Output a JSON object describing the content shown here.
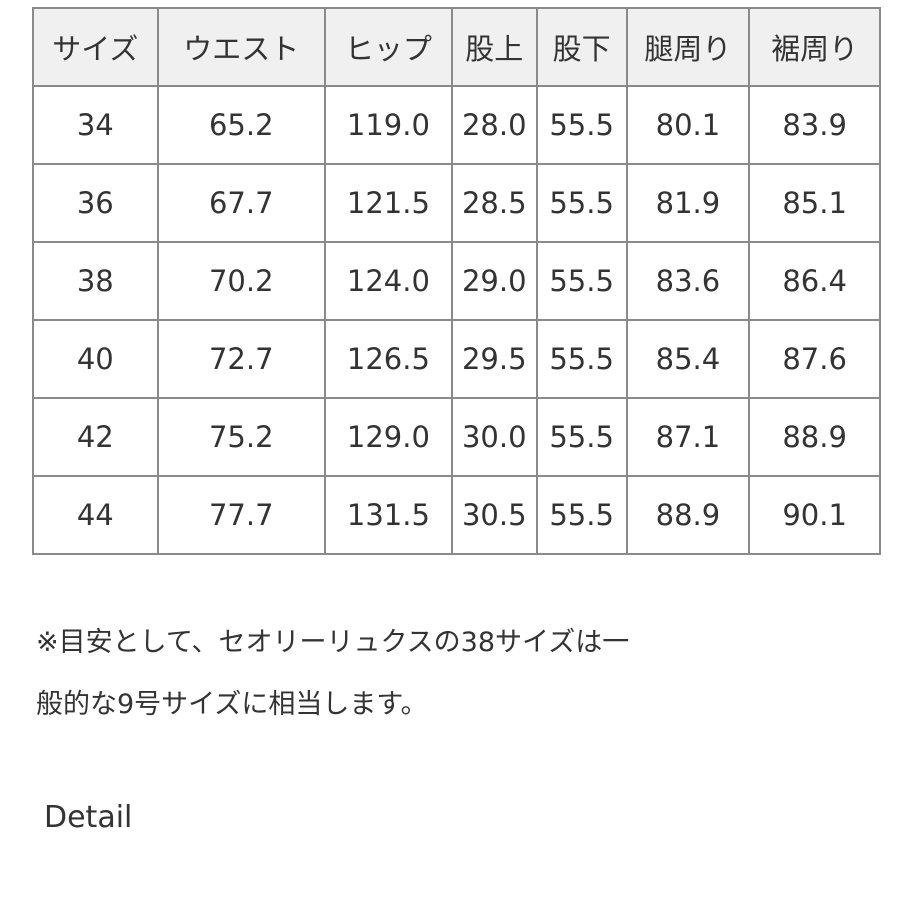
{
  "table": {
    "headers": [
      "サイズ",
      "ウエスト",
      "ヒップ",
      "股上",
      "股下",
      "腿周り",
      "裾周り"
    ],
    "rows": [
      [
        "34",
        "65.2",
        "119.0",
        "28.0",
        "55.5",
        "80.1",
        "83.9"
      ],
      [
        "36",
        "67.7",
        "121.5",
        "28.5",
        "55.5",
        "81.9",
        "85.1"
      ],
      [
        "38",
        "70.2",
        "124.0",
        "29.0",
        "55.5",
        "83.6",
        "86.4"
      ],
      [
        "40",
        "72.7",
        "126.5",
        "29.5",
        "55.5",
        "85.4",
        "87.6"
      ],
      [
        "42",
        "75.2",
        "129.0",
        "30.0",
        "55.5",
        "87.1",
        "88.9"
      ],
      [
        "44",
        "77.7",
        "131.5",
        "30.5",
        "55.5",
        "88.9",
        "90.1"
      ]
    ]
  },
  "note": {
    "line1": "※目安として、セオリーリュクスの38サイズは一",
    "line2": "般的な9号サイズに相当します。"
  },
  "detail_label": "Detail"
}
